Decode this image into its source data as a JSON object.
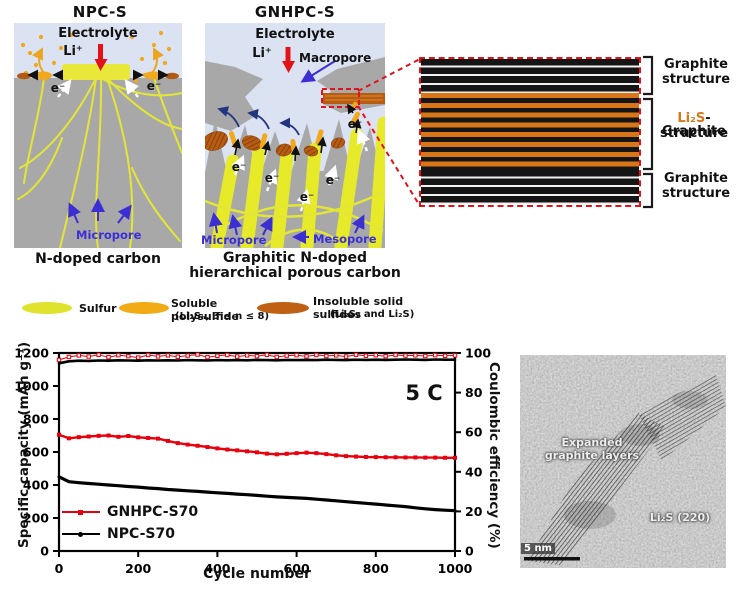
{
  "colors": {
    "electrolyte_blue": "#dbe2f2",
    "carbon_gray": "#a8a8a8",
    "sulfur_yellow": "#e9e73a",
    "polysulfide_orange": "#f0a81c",
    "insoluble_brown": "#b05a14",
    "accent_red": "#e31219",
    "pore_label_blue": "#3b2fd4",
    "stripe_orange": "#d97718",
    "chart_red": "#e8000d",
    "chart_black": "#000000"
  },
  "npc": {
    "title": "NPC-S",
    "electrolyte": "Electrolyte",
    "li": "Li⁺",
    "e_left": "e⁻",
    "e_right": "e⁻",
    "micropore": "Micropore",
    "caption": "N-doped carbon"
  },
  "gnhpc": {
    "title": "GNHPC-S",
    "electrolyte": "Electrolyte",
    "li": "Li⁺",
    "macropore": "Macropore",
    "micropore": "Micropore",
    "mesopore": "Mesopore",
    "caption_line1": "Graphitic N-doped",
    "caption_line2": "hierarchical porous carbon",
    "e_labels": [
      "e⁻",
      "e⁻",
      "e⁻",
      "e⁻",
      "e⁻"
    ]
  },
  "legend": {
    "sulfur": "Sulfur",
    "polysulfide_line1": "Soluble polysulfide",
    "polysulfide_line2": "(Li₂Sₙ, 3 ≤ n ≤ 8)",
    "insoluble_line1": "Insoluble solid sulfides",
    "insoluble_line2": "(Li₂S₂ and Li₂S)"
  },
  "graphite_diagram": {
    "top_line1": "Graphite",
    "top_line2": "structure",
    "mid_li2s": "Li₂S",
    "mid_rest": "-Graphite",
    "mid_line2": "structure",
    "bottom_line1": "Graphite",
    "bottom_line2": "structure"
  },
  "tem": {
    "label_line1": "Expanded",
    "label_line2": "graphite layers",
    "li2s": "Li₂S (220)",
    "scalebar": "5 nm"
  },
  "chart_data": {
    "type": "line",
    "xlabel": "Cycle number",
    "ylabel_left": "Specific capacity (mAh g⁻¹)",
    "ylabel_right": "Coulombic efficiency (%)",
    "annotation": "5 C",
    "xlim": [
      0,
      1000
    ],
    "ylim_left": [
      0,
      1200
    ],
    "ylim_right": [
      0,
      100
    ],
    "x_ticks": [
      0,
      200,
      400,
      600,
      800,
      1000
    ],
    "y_ticks_left": [
      0,
      200,
      400,
      600,
      800,
      1000,
      1200
    ],
    "y_ticks_right": [
      0,
      20,
      40,
      60,
      80,
      100
    ],
    "grid": false,
    "legend_position": "lower-left",
    "legend": [
      {
        "label": "GNHPC-S70",
        "color": "#e8000d",
        "marker": "square"
      },
      {
        "label": "NPC-S70",
        "color": "#000000",
        "marker": "circle"
      }
    ],
    "x": [
      0,
      25,
      50,
      75,
      100,
      125,
      150,
      175,
      200,
      225,
      250,
      275,
      300,
      325,
      350,
      375,
      400,
      425,
      450,
      475,
      500,
      525,
      550,
      575,
      600,
      625,
      650,
      675,
      700,
      725,
      750,
      775,
      800,
      825,
      850,
      875,
      900,
      925,
      950,
      975,
      1000
    ],
    "series": [
      {
        "name": "GNHPC-S70 capacity",
        "axis": "left",
        "color": "#e8000d",
        "lw": 2.4,
        "marker": "square",
        "ms": 3,
        "open": false,
        "values": [
          705,
          683,
          690,
          694,
          698,
          700,
          692,
          697,
          689,
          685,
          681,
          667,
          654,
          645,
          638,
          630,
          622,
          615,
          610,
          604,
          598,
          590,
          586,
          589,
          593,
          596,
          593,
          587,
          580,
          575,
          572,
          570,
          569,
          568,
          568,
          567,
          567,
          566,
          566,
          565,
          565
        ]
      },
      {
        "name": "NPC-S70 capacity",
        "axis": "left",
        "color": "#000000",
        "lw": 3.2,
        "marker": "circle",
        "ms": 2.4,
        "open": false,
        "values": [
          450,
          420,
          414,
          409,
          405,
          400,
          396,
          391,
          387,
          382,
          378,
          373,
          369,
          365,
          361,
          357,
          353,
          349,
          345,
          341,
          337,
          332,
          328,
          325,
          322,
          319,
          314,
          309,
          304,
          299,
          294,
          289,
          284,
          279,
          274,
          269,
          262,
          256,
          251,
          247,
          244
        ]
      },
      {
        "name": "GNHPC-S70 coulombic efficiency",
        "axis": "right",
        "color": "#e8000d",
        "lw": 1,
        "marker": "square",
        "ms": 3.4,
        "open": true,
        "values": [
          96.5,
          98.0,
          98.8,
          98.2,
          99.1,
          97.9,
          98.9,
          98.4,
          97.7,
          99.0,
          98.3,
          98.8,
          98.1,
          98.7,
          99.2,
          97.9,
          98.6,
          99.0,
          98.2,
          98.8,
          98.4,
          99.1,
          98.0,
          98.7,
          98.9,
          98.3,
          99.0,
          98.5,
          98.8,
          98.2,
          99.1,
          98.6,
          98.9,
          98.4,
          99.0,
          98.7,
          98.8,
          98.5,
          98.9,
          98.6,
          98.8
        ]
      },
      {
        "name": "NPC-S70 coulombic efficiency",
        "axis": "right",
        "color": "#000000",
        "lw": 2.6,
        "marker": "circle",
        "ms": 1.8,
        "open": false,
        "values": [
          94.8,
          95.8,
          96.1,
          96.0,
          96.2,
          96.1,
          96.3,
          96.2,
          96.1,
          96.3,
          96.2,
          96.3,
          96.2,
          96.4,
          96.3,
          96.2,
          96.4,
          96.3,
          96.4,
          96.3,
          96.5,
          96.4,
          96.3,
          96.5,
          96.4,
          96.5,
          96.4,
          96.6,
          96.5,
          96.4,
          96.6,
          96.5,
          96.6,
          96.5,
          96.6,
          96.7,
          96.6,
          96.5,
          96.7,
          96.6,
          96.6
        ]
      }
    ]
  }
}
